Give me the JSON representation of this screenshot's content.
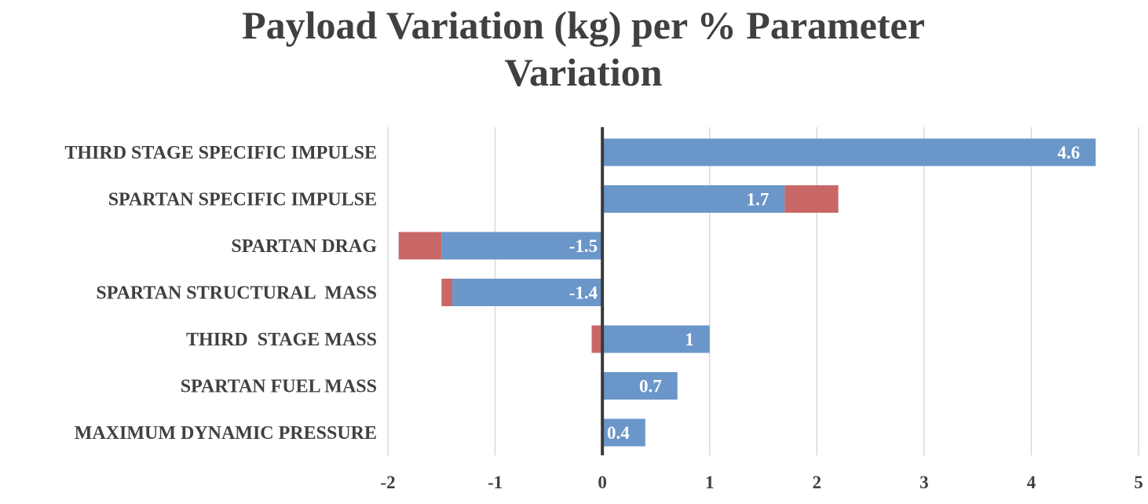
{
  "chart_data": {
    "type": "bar",
    "orientation": "horizontal",
    "stacked": true,
    "title_line1": "Payload Variation (kg) per % Parameter",
    "title_line2": "Variation",
    "categories": [
      "THIRD STAGE SPECIFIC IMPULSE",
      "SPARTAN SPECIFIC IMPULSE",
      "SPARTAN DRAG",
      "SPARTAN STRUCTURAL  MASS",
      "THIRD  STAGE MASS",
      "SPARTAN FUEL MASS",
      "MAXIMUM DYNAMIC PRESSURE"
    ],
    "series": [
      {
        "color": "#6a96c9",
        "values": [
          4.6,
          1.7,
          -1.5,
          -1.4,
          1,
          0.7,
          0.4
        ],
        "labels": [
          "4.6",
          "1.7",
          "-1.5",
          "-1.4",
          "1",
          "0.7",
          "0.4"
        ]
      },
      {
        "color": "#c86766",
        "values": [
          0,
          0.5,
          -0.4,
          -0.1,
          -0.1,
          0,
          0
        ]
      }
    ],
    "xlim": [
      -2,
      5
    ],
    "xticks": [
      "-2",
      "-1",
      "0",
      "1",
      "2",
      "3",
      "4",
      "5"
    ],
    "xlabel": "",
    "ylabel": "",
    "grid": "vertical",
    "legend": "none"
  }
}
